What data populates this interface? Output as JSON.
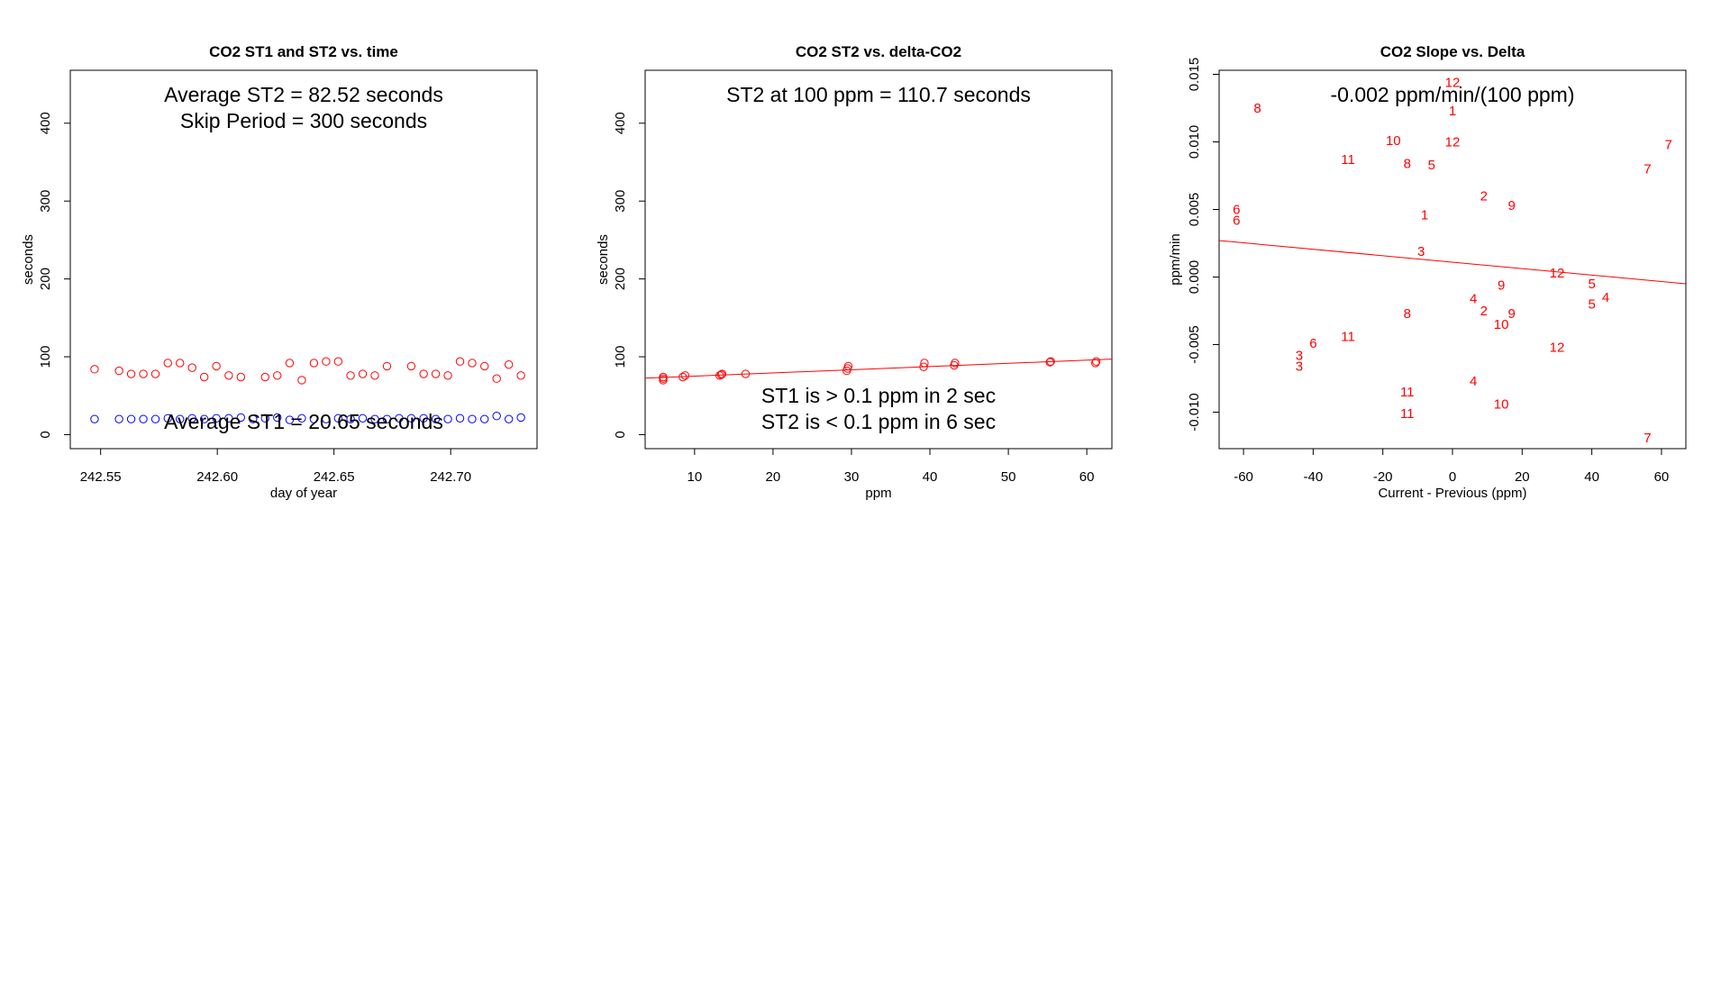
{
  "chart_data": [
    {
      "type": "scatter",
      "title": "CO2 ST1 and ST2 vs. time",
      "xlabel": "day of year",
      "ylabel": "seconds",
      "xlim": [
        242.537,
        242.737
      ],
      "ylim": [
        -18,
        468
      ],
      "xticks": [
        242.55,
        242.6,
        242.65,
        242.7
      ],
      "xtick_labels": [
        "242.55",
        "242.60",
        "242.65",
        "242.70"
      ],
      "yticks": [
        0,
        100,
        200,
        300,
        400
      ],
      "ytick_labels": [
        "0",
        "100",
        "200",
        "300",
        "400"
      ],
      "annotations": [
        "Average ST2 =  82.52  seconds",
        "Skip Period =  300  seconds",
        "Average ST1 =  20.65  seconds"
      ],
      "colors": {
        "st2": "#ff0000",
        "st1": "#0000ff"
      },
      "series": [
        {
          "name": "ST2",
          "color": "#ff0000",
          "x": [
            242.5474,
            242.5579,
            242.5631,
            242.5683,
            242.5735,
            242.5788,
            242.584,
            242.5892,
            242.5944,
            242.5996,
            242.6049,
            242.6101,
            242.6205,
            242.6257,
            242.631,
            242.6362,
            242.6414,
            242.6466,
            242.6518,
            242.6571,
            242.6623,
            242.6675,
            242.6727,
            242.6831,
            242.6884,
            242.6936,
            242.6988,
            242.704,
            242.7092,
            242.7145,
            242.7197,
            242.7249,
            242.7301
          ],
          "y": [
            84,
            82,
            78,
            78,
            78,
            92,
            92,
            86,
            74,
            88,
            76,
            74,
            74,
            76,
            92,
            70,
            92,
            94,
            94,
            76,
            78,
            76,
            88,
            88,
            78,
            78,
            76,
            94,
            92,
            88,
            72,
            90,
            76
          ]
        },
        {
          "name": "ST1",
          "color": "#0000ff",
          "x": [
            242.5474,
            242.5579,
            242.5631,
            242.5683,
            242.5735,
            242.5788,
            242.584,
            242.5892,
            242.5944,
            242.5996,
            242.6049,
            242.6101,
            242.6153,
            242.6205,
            242.6257,
            242.631,
            242.6362,
            242.6414,
            242.6466,
            242.6518,
            242.6571,
            242.6623,
            242.6675,
            242.6727,
            242.6779,
            242.6831,
            242.6884,
            242.6936,
            242.6988,
            242.704,
            242.7092,
            242.7145,
            242.7197,
            242.7249,
            242.7301
          ],
          "y": [
            20,
            20,
            20,
            20,
            20,
            21,
            20,
            21,
            20,
            21,
            21,
            22,
            20,
            21,
            22,
            19,
            21,
            20,
            20,
            21,
            20,
            21,
            20,
            20,
            21,
            21,
            21,
            20,
            20,
            21,
            20,
            20,
            24,
            20,
            22
          ]
        }
      ]
    },
    {
      "type": "scatter",
      "title": "CO2 ST2 vs. delta-CO2",
      "xlabel": "ppm",
      "ylabel": "seconds",
      "xlim": [
        3.7,
        63.2
      ],
      "ylim": [
        -18,
        468
      ],
      "xticks": [
        10,
        20,
        30,
        40,
        50,
        60
      ],
      "xtick_labels": [
        "10",
        "20",
        "30",
        "40",
        "50",
        "60"
      ],
      "yticks": [
        0,
        100,
        200,
        300,
        400
      ],
      "ytick_labels": [
        "0",
        "100",
        "200",
        "300",
        "400"
      ],
      "annotations": [
        "ST2 at 100 ppm =  110.7  seconds",
        "ST1 is > 0.1 ppm in 2 sec",
        "ST2 is < 0.1 ppm in 6 sec"
      ],
      "colors": {
        "points": "#ff0000",
        "fit": "#ff0000"
      },
      "x": [
        6,
        6,
        6,
        8.5,
        8.8,
        13.2,
        13.4,
        13.5,
        16.5,
        29.4,
        29.5,
        29.6,
        39.2,
        39.3,
        43.1,
        43.2,
        55.3,
        55.4,
        61.1,
        61.2
      ],
      "y": [
        70,
        72,
        74,
        74,
        76,
        76,
        77,
        78,
        78,
        82,
        85,
        88,
        87,
        92,
        89,
        92,
        93,
        94,
        92,
        94
      ],
      "fit": {
        "x1": 3.7,
        "y1": 72.5,
        "x2": 63.2,
        "y2": 97
      }
    },
    {
      "type": "scatter",
      "title": "CO2 Slope vs. Delta",
      "xlabel": "Current - Previous (ppm)",
      "ylabel": "ppm/min",
      "xlim": [
        -67,
        67
      ],
      "ylim": [
        -0.0127,
        0.0153
      ],
      "xticks": [
        -60,
        -40,
        -20,
        0,
        20,
        40,
        60
      ],
      "xtick_labels": [
        "-60",
        "-40",
        "-20",
        "0",
        "20",
        "40",
        "60"
      ],
      "yticks": [
        -0.01,
        -0.005,
        0,
        0.005,
        0.01,
        0.015
      ],
      "ytick_labels": [
        "-0.010",
        "-0.005",
        "0.000",
        "0.005",
        "0.010",
        "0.015"
      ],
      "annotations": [
        "-0.002  ppm/min/(100 ppm)"
      ],
      "colors": {
        "labels": "#ff0000",
        "fit": "#ff0000"
      },
      "points": [
        {
          "x": 0,
          "y": 0.0144,
          "label": "12"
        },
        {
          "x": 0,
          "y": 0.0123,
          "label": "1"
        },
        {
          "x": -56,
          "y": 0.0125,
          "label": "8"
        },
        {
          "x": -17,
          "y": 0.0101,
          "label": "10"
        },
        {
          "x": 0,
          "y": 0.01,
          "label": "12"
        },
        {
          "x": 62,
          "y": 0.0098,
          "label": "7"
        },
        {
          "x": -30,
          "y": 0.0087,
          "label": "11"
        },
        {
          "x": -13,
          "y": 0.0084,
          "label": "8"
        },
        {
          "x": -6,
          "y": 0.0083,
          "label": "5"
        },
        {
          "x": 56,
          "y": 0.008,
          "label": "7"
        },
        {
          "x": 9,
          "y": 0.006,
          "label": "2"
        },
        {
          "x": 17,
          "y": 0.0053,
          "label": "9"
        },
        {
          "x": -62,
          "y": 0.005,
          "label": "6"
        },
        {
          "x": -8,
          "y": 0.0046,
          "label": "1"
        },
        {
          "x": -62,
          "y": 0.0042,
          "label": "6"
        },
        {
          "x": -9,
          "y": 0.0019,
          "label": "3"
        },
        {
          "x": 30,
          "y": 0.0003,
          "label": "12"
        },
        {
          "x": 40,
          "y": -0.0005,
          "label": "5"
        },
        {
          "x": 14,
          "y": -0.0006,
          "label": "9"
        },
        {
          "x": 44,
          "y": -0.0015,
          "label": "4"
        },
        {
          "x": 6,
          "y": -0.0016,
          "label": "4"
        },
        {
          "x": 40,
          "y": -0.002,
          "label": "5"
        },
        {
          "x": 9,
          "y": -0.0025,
          "label": "2"
        },
        {
          "x": -13,
          "y": -0.0027,
          "label": "8"
        },
        {
          "x": 17,
          "y": -0.0027,
          "label": "9"
        },
        {
          "x": 14,
          "y": -0.0035,
          "label": "10"
        },
        {
          "x": -30,
          "y": -0.0044,
          "label": "11"
        },
        {
          "x": -40,
          "y": -0.0049,
          "label": "6"
        },
        {
          "x": 30,
          "y": -0.0052,
          "label": "12"
        },
        {
          "x": -44,
          "y": -0.0058,
          "label": "3"
        },
        {
          "x": -44,
          "y": -0.0066,
          "label": "3"
        },
        {
          "x": 6,
          "y": -0.0077,
          "label": "4"
        },
        {
          "x": -13,
          "y": -0.0085,
          "label": "11"
        },
        {
          "x": 14,
          "y": -0.0094,
          "label": "10"
        },
        {
          "x": -13,
          "y": -0.0101,
          "label": "11"
        },
        {
          "x": 56,
          "y": -0.0119,
          "label": "7"
        }
      ],
      "fit": {
        "x1": -67,
        "y1": 0.0027,
        "x2": 67,
        "y2": -0.0005
      }
    }
  ]
}
